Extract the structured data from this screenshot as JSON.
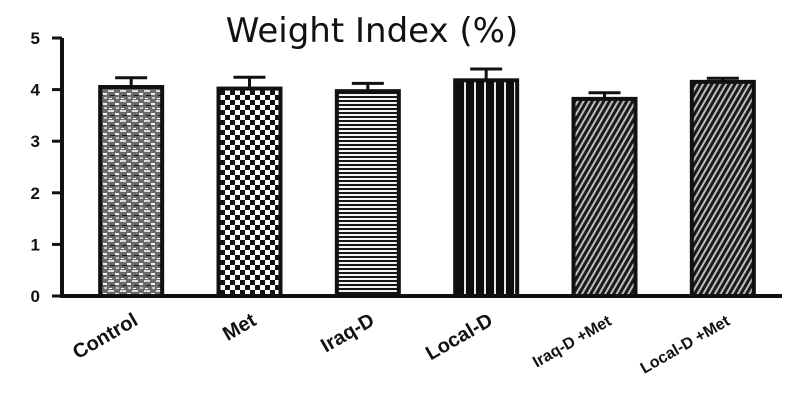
{
  "chart_data": {
    "type": "bar",
    "title": "Weight Index (%)",
    "xlabel": "",
    "ylabel": "",
    "ylim": [
      0,
      5
    ],
    "yticks": [
      0,
      1,
      2,
      3,
      4,
      5
    ],
    "grid": false,
    "categories": [
      "Control",
      "Met",
      "Iraq-D",
      "Local-D",
      "Iraq-D +Met",
      "Local-D +Met"
    ],
    "values": [
      4.05,
      4.02,
      3.97,
      4.18,
      3.82,
      4.15
    ],
    "error": [
      0.18,
      0.22,
      0.15,
      0.22,
      0.12,
      0.07
    ],
    "patterns": [
      "mottled",
      "checker",
      "hstripes",
      "vstripes",
      "diagonal-fine",
      "diagonal-fine"
    ]
  }
}
